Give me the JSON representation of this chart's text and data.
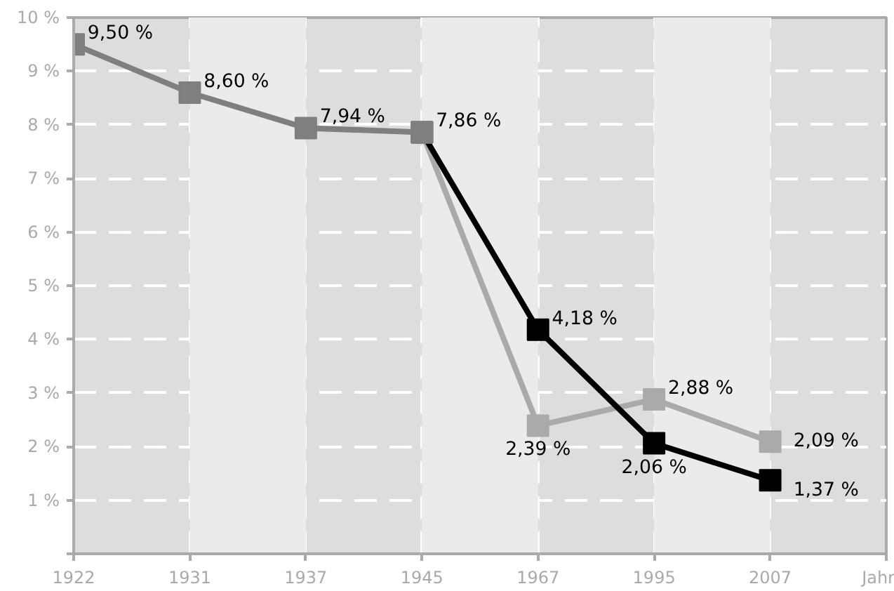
{
  "chart_data": {
    "type": "line",
    "xlabel": "Jahr",
    "categories": [
      "1922",
      "1931",
      "1937",
      "1945",
      "1967",
      "1995",
      "2007"
    ],
    "series": [
      {
        "color": "#7f7f7f",
        "values": [
          9.5,
          8.6,
          7.94,
          7.86,
          null,
          null,
          null
        ],
        "value_labels": [
          "9,50 %",
          "8,60 %",
          "7,94 %",
          null,
          null,
          null,
          null
        ]
      },
      {
        "color": "#aaaaaa",
        "values": [
          null,
          null,
          null,
          7.86,
          2.39,
          2.88,
          2.09
        ],
        "value_labels": [
          null,
          null,
          null,
          null,
          "2,39 %",
          "2,88 %",
          "2,09 %"
        ]
      },
      {
        "color": "#000000",
        "values": [
          null,
          null,
          null,
          7.86,
          4.18,
          2.06,
          1.37
        ],
        "value_labels": [
          null,
          null,
          null,
          "7,86 %",
          "4,18 %",
          "2,06 %",
          "1,37 %"
        ]
      }
    ],
    "ylim": [
      0,
      10
    ],
    "yticks": [
      {
        "value": 0,
        "label": null
      },
      {
        "value": 1,
        "label": "1 %"
      },
      {
        "value": 2,
        "label": "2 %"
      },
      {
        "value": 3,
        "label": "3 %"
      },
      {
        "value": 4,
        "label": "4 %"
      },
      {
        "value": 5,
        "label": "5 %"
      },
      {
        "value": 6,
        "label": "6 %"
      },
      {
        "value": 7,
        "label": "7 %"
      },
      {
        "value": 8,
        "label": "8 %"
      },
      {
        "value": 9,
        "label": "9 %"
      },
      {
        "value": 10,
        "label": "10 %"
      }
    ],
    "bands": [
      {
        "axis": "x",
        "from": "1931",
        "to": "1937",
        "color": "#ebebeb"
      },
      {
        "axis": "x",
        "from": "1945",
        "to": "1967",
        "color": "#ebebeb"
      },
      {
        "axis": "x",
        "from": "1995",
        "to": "2007",
        "color": "#ebebeb"
      }
    ],
    "grid": true,
    "marker": "square",
    "line_style": "solid"
  }
}
